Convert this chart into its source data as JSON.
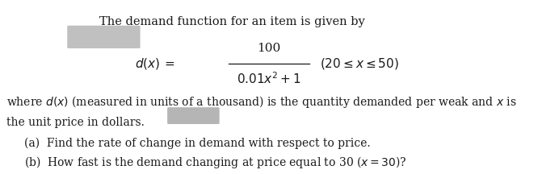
{
  "bg_color": "#ffffff",
  "title_text": "The demand function for an item is given by",
  "text_color": "#1a1a1a",
  "font_size_title": 10.5,
  "font_size_formula": 11,
  "font_size_body": 10.0,
  "redacted_color_top": "#c8c8c8",
  "redacted_color_bottom": "#b8b8b8",
  "line1_desc": "where d(x) (measured in units of a thousand) is the quantity demanded per weak and x is",
  "line2_desc": "the unit price in dollars.",
  "part_a": "(a)  Find the rate of change in demand with respect to price.",
  "part_b": "(b)  How fast is the demand changing at price equal to 30 (x = 30)?"
}
